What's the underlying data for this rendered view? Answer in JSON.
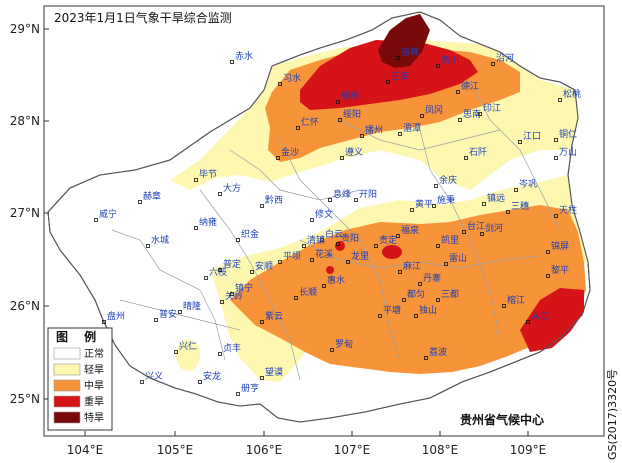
{
  "map_title": "2023年1月1日气象干旱综合监测",
  "colors": {
    "normal": "#ffffff",
    "light": "#fdf7b0",
    "moderate": "#f7943a",
    "severe": "#d51318",
    "extreme": "#7a0a0a",
    "city_blue": "#1c3fb8",
    "frame": "#333333"
  },
  "legend": {
    "title": "图 例",
    "items": [
      {
        "label": "正常",
        "color": "#ffffff"
      },
      {
        "label": "轻旱",
        "color": "#fdf7b0"
      },
      {
        "label": "中旱",
        "color": "#f7943a"
      },
      {
        "label": "重旱",
        "color": "#d51318"
      },
      {
        "label": "特旱",
        "color": "#7a0a0a"
      }
    ]
  },
  "axes": {
    "lon_ticks": [
      "104°E",
      "105°E",
      "106°E",
      "107°E",
      "108°E",
      "109°E"
    ],
    "lat_ticks": [
      "29°N",
      "28°N",
      "27°N",
      "26°N",
      "25°N"
    ]
  },
  "agency": "贵州省气候中心",
  "map_code": "GS(2017)3320号",
  "cities": [
    "赤水",
    "习水",
    "桐梓",
    "道真",
    "务川",
    "沿河",
    "绥阳",
    "正安",
    "湄潭",
    "凤冈",
    "德江",
    "印江",
    "松桃",
    "仁怀",
    "遵义",
    "播州",
    "思南",
    "江口",
    "铜仁",
    "金沙",
    "石阡",
    "万山",
    "毕节",
    "大方",
    "黔西",
    "息烽",
    "开阳",
    "余庆",
    "施秉",
    "岑巩",
    "威宁",
    "赫章",
    "纳雍",
    "织金",
    "修文",
    "白云",
    "贵阳",
    "黄平",
    "镇远",
    "三穗",
    "天柱",
    "水城",
    "六枝",
    "普定",
    "安顺",
    "平坝",
    "清镇",
    "花溪",
    "龙里",
    "贵定",
    "福泉",
    "麻江",
    "凯里",
    "台江",
    "剑河",
    "锦屏",
    "盘州",
    "普安",
    "晴隆",
    "关岭",
    "镇宁",
    "紫云",
    "长顺",
    "惠水",
    "都匀",
    "丹寨",
    "雷山",
    "榕江",
    "黎平",
    "兴仁",
    "贞丰",
    "望谟",
    "罗甸",
    "平塘",
    "独山",
    "三都",
    "荔波",
    "从江",
    "兴义",
    "安龙",
    "册亨"
  ]
}
